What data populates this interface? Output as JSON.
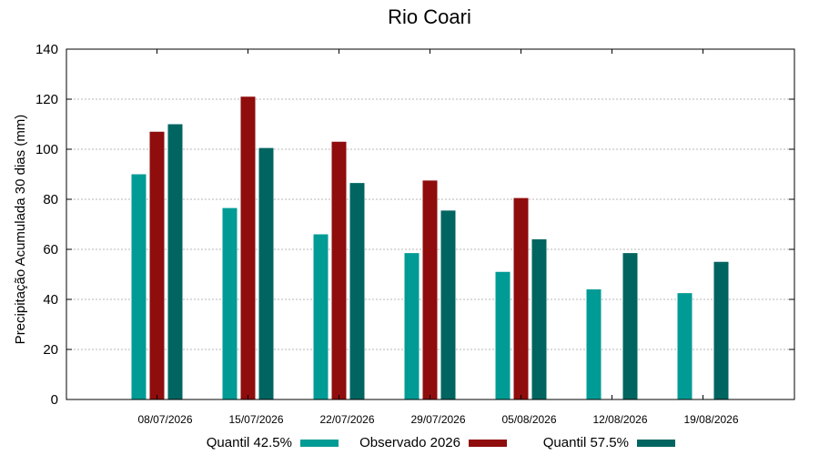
{
  "chart_data": {
    "type": "bar",
    "title": "Rio Coari",
    "xlabel": "",
    "ylabel": "Precipitação Acumulada 30 dias (mm)",
    "ylim": [
      0,
      140
    ],
    "yticks": [
      0,
      20,
      40,
      60,
      80,
      100,
      120,
      140
    ],
    "grid": true,
    "legend_position": "bottom",
    "categories": [
      "08/07/2026",
      "15/07/2026",
      "22/07/2026",
      "29/07/2026",
      "05/08/2026",
      "12/08/2026",
      "19/08/2026"
    ],
    "series": [
      {
        "name": "Quantil 42.5%",
        "color": "#009b95",
        "values": [
          90,
          76.5,
          66,
          58.5,
          51,
          44,
          42.5
        ]
      },
      {
        "name": "Observado 2026",
        "color": "#8f0d0d",
        "values": [
          107,
          121,
          103,
          87.5,
          80.5,
          null,
          null
        ]
      },
      {
        "name": "Quantil 57.5%",
        "color": "#006560",
        "values": [
          110,
          100.5,
          86.5,
          75.5,
          64,
          58.5,
          55
        ]
      }
    ]
  }
}
